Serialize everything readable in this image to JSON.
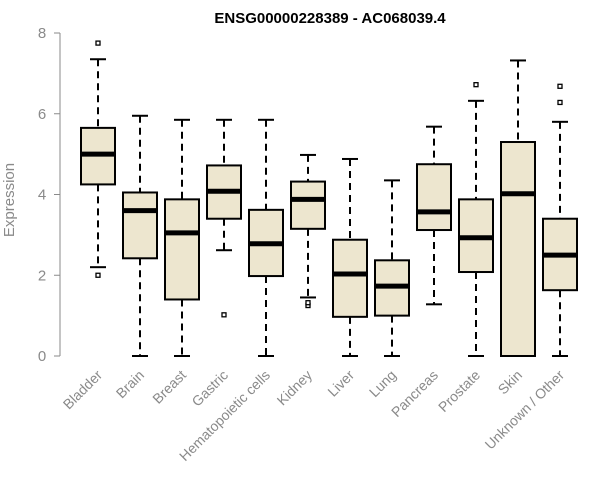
{
  "chart_data": {
    "type": "boxplot",
    "title": "ENSG00000228389 - AC068039.4",
    "ylabel": "Expression",
    "xlabel": "",
    "ylim": [
      0,
      8
    ],
    "yticks": [
      0,
      2,
      4,
      6,
      8
    ],
    "grid": false,
    "legend": "none",
    "categories": [
      "Bladder",
      "Brain",
      "Breast",
      "Gastric",
      "Hematopoietic cells",
      "Kidney",
      "Liver",
      "Lung",
      "Pancreas",
      "Prostate",
      "Skin",
      "Unknown / Other"
    ],
    "boxes": [
      {
        "category": "Bladder",
        "whisker_low": 2.2,
        "q1": 4.25,
        "median": 5.0,
        "q3": 5.65,
        "whisker_high": 7.35,
        "outliers": [
          7.75,
          2.0
        ]
      },
      {
        "category": "Brain",
        "whisker_low": 0.0,
        "q1": 2.42,
        "median": 3.6,
        "q3": 4.05,
        "whisker_high": 5.95,
        "outliers": []
      },
      {
        "category": "Breast",
        "whisker_low": 0.0,
        "q1": 1.4,
        "median": 3.05,
        "q3": 3.88,
        "whisker_high": 5.85,
        "outliers": []
      },
      {
        "category": "Gastric",
        "whisker_low": 2.62,
        "q1": 3.4,
        "median": 4.08,
        "q3": 4.72,
        "whisker_high": 5.85,
        "outliers": [
          1.02
        ]
      },
      {
        "category": "Hematopoietic cells",
        "whisker_low": 0.0,
        "q1": 1.98,
        "median": 2.78,
        "q3": 3.62,
        "whisker_high": 5.85,
        "outliers": []
      },
      {
        "category": "Kidney",
        "whisker_low": 1.45,
        "q1": 3.15,
        "median": 3.88,
        "q3": 4.32,
        "whisker_high": 4.98,
        "outliers": [
          1.25,
          1.32
        ]
      },
      {
        "category": "Liver",
        "whisker_low": 0.0,
        "q1": 0.97,
        "median": 2.03,
        "q3": 2.88,
        "whisker_high": 4.88,
        "outliers": []
      },
      {
        "category": "Lung",
        "whisker_low": 0.0,
        "q1": 1.0,
        "median": 1.73,
        "q3": 2.37,
        "whisker_high": 4.35,
        "outliers": []
      },
      {
        "category": "Pancreas",
        "whisker_low": 1.28,
        "q1": 3.12,
        "median": 3.57,
        "q3": 4.75,
        "whisker_high": 5.68,
        "outliers": []
      },
      {
        "category": "Prostate",
        "whisker_low": 0.0,
        "q1": 2.08,
        "median": 2.93,
        "q3": 3.88,
        "whisker_high": 6.32,
        "outliers": [
          6.72
        ]
      },
      {
        "category": "Skin",
        "whisker_low": 0.0,
        "q1": 0.0,
        "median": 4.02,
        "q3": 5.3,
        "whisker_high": 7.32,
        "outliers": []
      },
      {
        "category": "Unknown / Other",
        "whisker_low": 0.0,
        "q1": 1.63,
        "median": 2.5,
        "q3": 3.4,
        "whisker_high": 5.8,
        "outliers": [
          6.68,
          6.28
        ]
      }
    ],
    "colors": {
      "box_fill": "#ede6cf",
      "box_stroke": "#000000",
      "median": "#000000",
      "axis": "#8a8a8a",
      "text_muted": "#8a8a8a",
      "title": "#000000"
    }
  }
}
